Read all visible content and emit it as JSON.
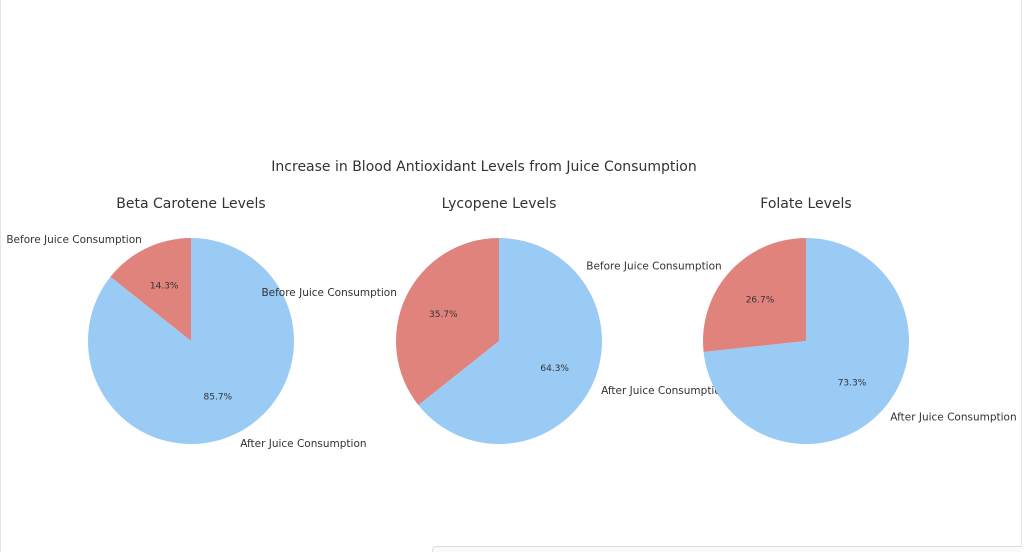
{
  "chart_data": {
    "type": "pie",
    "title": "Increase in Blood Antioxidant Levels from Juice Consumption",
    "colors": [
      "#e0837d",
      "#99cbf5"
    ],
    "start_angle_deg": 90,
    "direction": "counterclockwise",
    "pies": [
      {
        "title": "Beta Carotene Levels",
        "labels": [
          "Before Juice Consumption",
          "After Juice Consumption"
        ],
        "values": [
          14.3,
          85.7
        ],
        "percent_labels": [
          "14.3%",
          "85.7%"
        ]
      },
      {
        "title": "Lycopene Levels",
        "labels": [
          "Before Juice Consumption",
          "After Juice Consumption"
        ],
        "values": [
          35.7,
          64.3
        ],
        "percent_labels": [
          "35.7%",
          "64.3%"
        ]
      },
      {
        "title": "Folate Levels",
        "labels": [
          "Before Juice Consumption",
          "After Juice Consumption"
        ],
        "values": [
          26.7,
          73.3
        ],
        "percent_labels": [
          "26.7%",
          "73.3%"
        ]
      }
    ]
  }
}
